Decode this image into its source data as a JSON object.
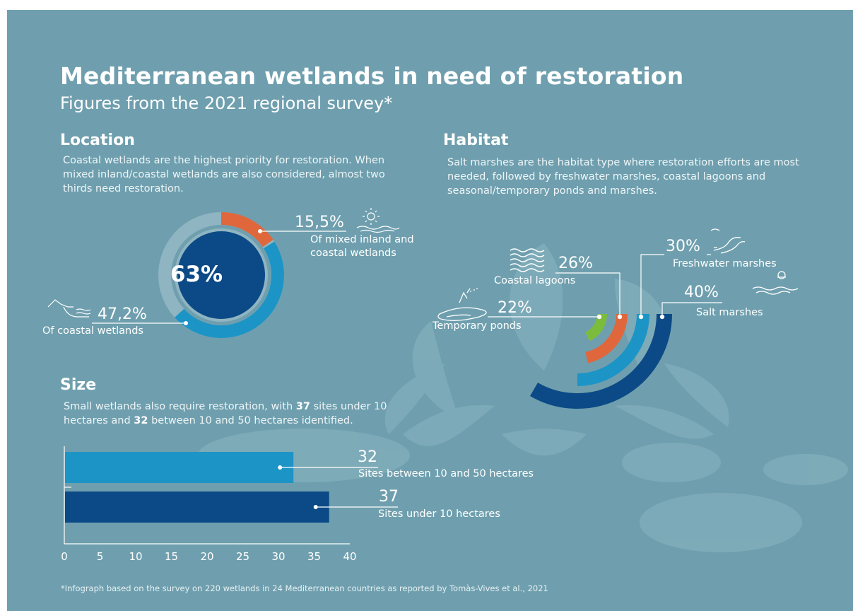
{
  "title": "Mediterranean wetlands in need of restoration",
  "subtitle": "Figures from the 2021 regional survey*",
  "location": {
    "heading": "Location",
    "text": "Coastal wetlands are the highest priority for restoration. When mixed inland/coastal wetlands are also considered, almost two thirds need restoration.",
    "center_label": "63%",
    "mixed_value": "15,5%",
    "mixed_label_1": "Of  mixed inland  and",
    "mixed_label_2": "coastal wetlands",
    "coastal_value": "47,2%",
    "coastal_label": "Of coastal wetlands"
  },
  "habitat": {
    "heading": "Habitat",
    "text": "Salt marshes are the habitat type where restoration efforts are most needed, followed by freshwater marshes, coastal lagoons and seasonal/temporary ponds and marshes.",
    "items": [
      {
        "value": "40%",
        "label": "Salt marshes"
      },
      {
        "value": "30%",
        "label": "Freshwater marshes"
      },
      {
        "value": "26%",
        "label": "Coastal lagoons"
      },
      {
        "value": "22%",
        "label": "Temporary ponds"
      }
    ]
  },
  "size": {
    "heading": "Size",
    "text_pre": "Small wetlands also require restoration, with ",
    "n1": "37",
    "text_mid1": " sites under 10 hectares and ",
    "n2": "32",
    "text_post": " between 10 and 50 hectares identified.",
    "bar1_value": "32",
    "bar1_label": "Sites between 10 and 50 hectares",
    "bar2_value": "37",
    "bar2_label": "Sites under 10 hectares"
  },
  "footnote": "*Infograph based on the survey on 220 wetlands in 24 Mediterranean countries as reported by Tomàs-Vives et al., 2021",
  "colors": {
    "background": "#6f9fae",
    "dark_blue": "#0b4a86",
    "mid_blue": "#1d94c6",
    "orange": "#e0663c",
    "green": "#7cbc3c"
  },
  "chart_data": [
    {
      "type": "pie",
      "categories": [
        "Of mixed inland and coastal wetlands",
        "Of coastal wetlands"
      ],
      "values": [
        15.5,
        47.2
      ],
      "total_label": "63%"
    },
    {
      "type": "bar",
      "categories": [
        "Salt marshes",
        "Freshwater marshes",
        "Coastal lagoons",
        "Temporary ponds"
      ],
      "values": [
        40,
        30,
        26,
        22
      ]
    },
    {
      "type": "bar",
      "orientation": "horizontal",
      "categories": [
        "Sites between 10 and 50 hectares",
        "Sites under 10 hectares"
      ],
      "values": [
        32,
        37
      ],
      "xlim": [
        0,
        40
      ],
      "xticks": [
        0,
        5,
        10,
        15,
        20,
        25,
        30,
        35,
        40
      ]
    }
  ]
}
